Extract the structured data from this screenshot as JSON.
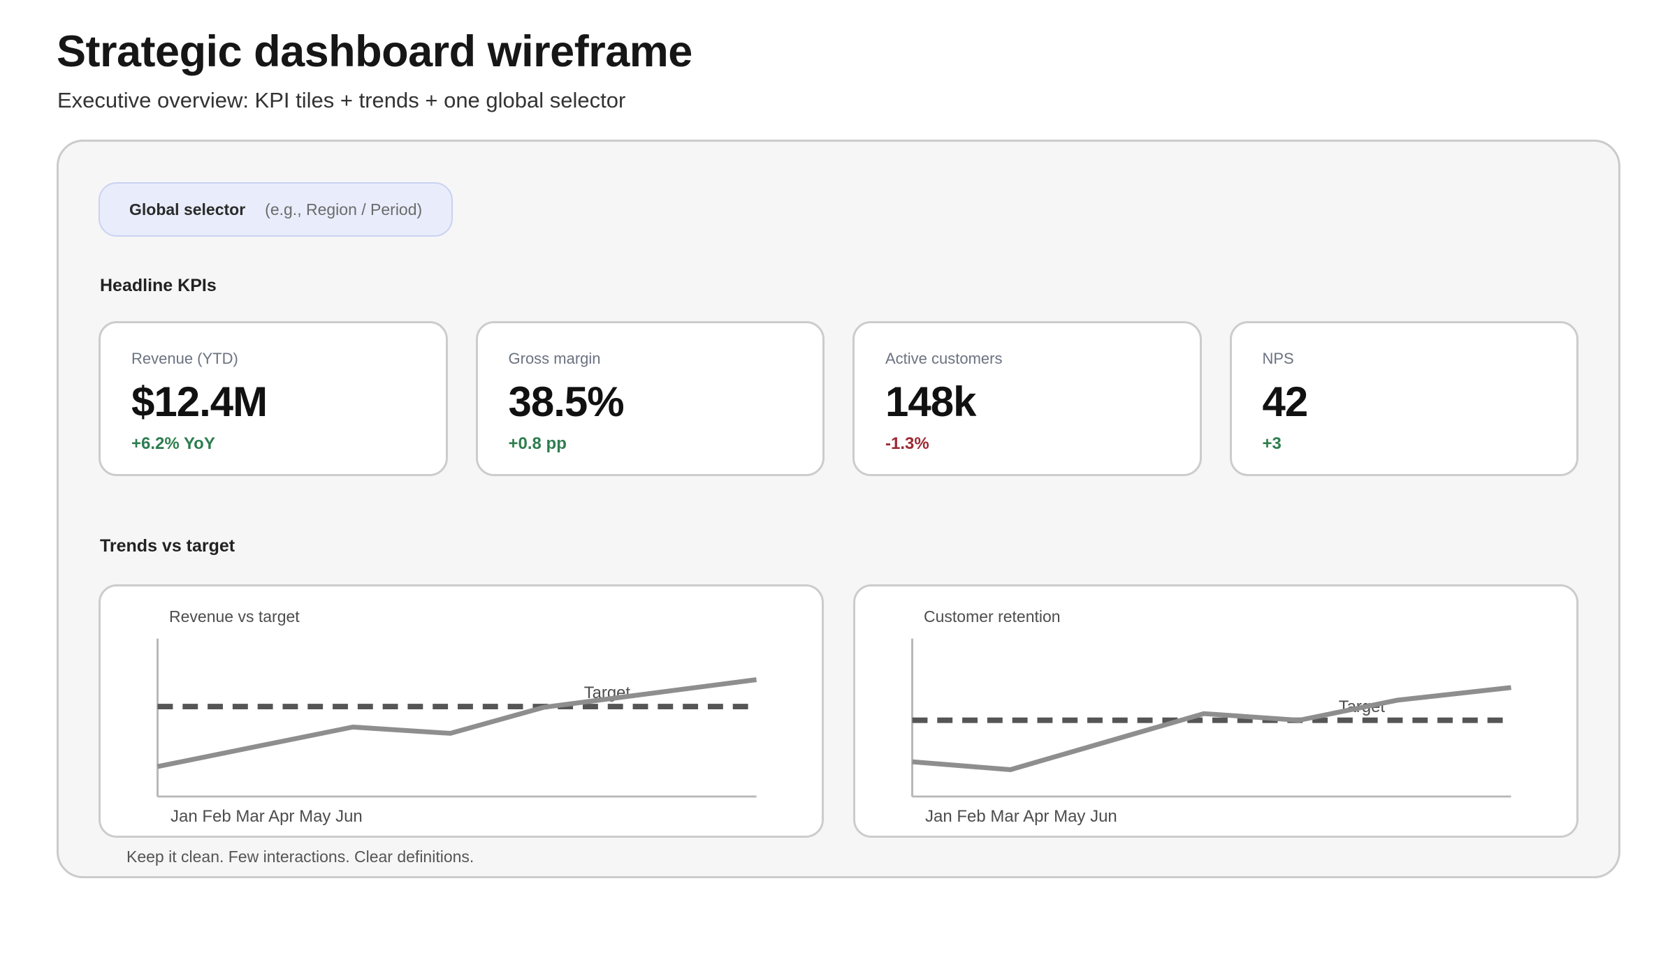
{
  "page": {
    "title": "Strategic dashboard wireframe",
    "subtitle": "Executive overview: KPI tiles + trends + one global selector"
  },
  "global_selector": {
    "label": "Global selector",
    "hint": "(e.g., Region / Period)"
  },
  "sections": {
    "kpis_heading": "Headline KPIs",
    "trends_heading": "Trends vs target"
  },
  "kpis": [
    {
      "label": "Revenue (YTD)",
      "value": "$12.4M",
      "delta": "+6.2% YoY",
      "direction": "up"
    },
    {
      "label": "Gross margin",
      "value": "38.5%",
      "delta": "+0.8 pp",
      "direction": "up"
    },
    {
      "label": "Active customers",
      "value": "148k",
      "delta": "-1.3%",
      "direction": "down"
    },
    {
      "label": "NPS",
      "value": "42",
      "delta": "+3",
      "direction": "up"
    }
  ],
  "footer_note": "Keep it clean. Few interactions. Clear definitions.",
  "colors": {
    "positive": "#2e7d4f",
    "negative": "#9d2933",
    "accent_bg": "#e9edfb",
    "accent_border": "#c9d2f2",
    "trend_line": "#8e8e8e",
    "target_line": "#555555",
    "axis": "#b8b8b8",
    "label_text": "#4d4d4d"
  },
  "chart_data": [
    {
      "type": "line",
      "title": "Revenue vs target",
      "x_labels": [
        "Jan",
        "Feb",
        "Mar",
        "Apr",
        "May",
        "Jun"
      ],
      "series": [
        {
          "name": "actual",
          "points": [
            {
              "x": 0.0,
              "v": 19
            },
            {
              "x": 0.326,
              "v": 44
            },
            {
              "x": 0.489,
              "v": 40
            },
            {
              "x": 0.645,
              "v": 56.5
            },
            {
              "x": 1.0,
              "v": 74
            }
          ]
        }
      ],
      "target": {
        "label": "Target",
        "value": 57
      },
      "monthly_values_estimate": [
        19,
        34,
        42,
        51,
        64,
        74
      ],
      "ylim": [
        0,
        100
      ],
      "note": "wireframe sketch; values estimated as % of plot height, no numeric axis shown",
      "grid": false,
      "legend": false
    },
    {
      "type": "line",
      "title": "Customer retention",
      "x_labels": [
        "Jan",
        "Feb",
        "Mar",
        "Apr",
        "May",
        "Jun"
      ],
      "series": [
        {
          "name": "actual",
          "points": [
            {
              "x": 0.0,
              "v": 22
            },
            {
              "x": 0.164,
              "v": 17
            },
            {
              "x": 0.487,
              "v": 52.5
            },
            {
              "x": 0.646,
              "v": 48.3
            },
            {
              "x": 0.81,
              "v": 61
            },
            {
              "x": 1.0,
              "v": 69
            }
          ]
        }
      ],
      "target": {
        "label": "Target",
        "value": 48.3
      },
      "monthly_values_estimate": [
        22,
        21,
        43,
        50,
        60,
        69
      ],
      "ylim": [
        0,
        100
      ],
      "note": "wireframe sketch; values estimated as % of plot height, no numeric axis shown",
      "grid": false,
      "legend": false
    }
  ]
}
